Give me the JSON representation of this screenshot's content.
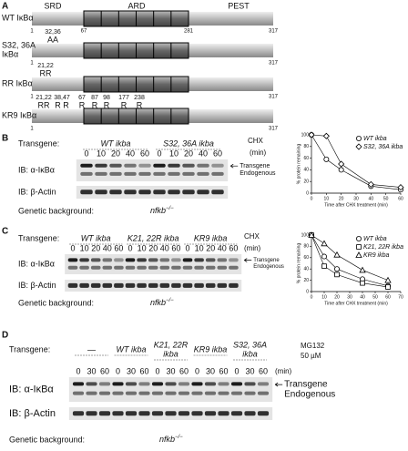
{
  "panel_a": {
    "label": "A",
    "domains": [
      "SRD",
      "ARD",
      "PEST"
    ],
    "rows": [
      {
        "name": [
          "WT IκBα"
        ],
        "positions": [
          "1",
          "67",
          "281",
          "317"
        ],
        "sites": [],
        "residues": []
      },
      {
        "name": [
          "S32, 36A",
          "IκBα"
        ],
        "positions": [
          "1",
          "317"
        ],
        "sites": [
          "32,36"
        ],
        "residues": [
          "AA"
        ]
      },
      {
        "name": [
          "RR IκBα"
        ],
        "positions": [
          "1",
          "317"
        ],
        "sites": [
          "21,22"
        ],
        "residues": [
          "RR"
        ]
      },
      {
        "name": [
          "KR9 IκBα"
        ],
        "positions": [
          "1",
          "317"
        ],
        "sites": [
          "21,22",
          "38,47",
          "67",
          "87",
          "98",
          "177",
          "238"
        ],
        "residues": [
          "RR",
          "R R",
          "R",
          "R",
          "R",
          "R",
          "R"
        ]
      }
    ]
  },
  "panel_b": {
    "label": "B",
    "transgene_label": "Transgene:",
    "groups": [
      [
        "WT ikba"
      ],
      [
        "S32, 36A ikba"
      ]
    ],
    "treatment": [
      "CHX"
    ],
    "unit": "(min)",
    "timepoints": [
      "0",
      "10",
      "20",
      "40",
      "60"
    ],
    "blots": [
      "IB: α-IκBα",
      "IB: β-Actin"
    ],
    "bands": [
      "Transgene",
      "Endogenous"
    ],
    "background_label": "Genetic background:",
    "background": {
      "gene": "nfkb",
      "genotype": "−/−"
    },
    "plot": {
      "y_label": "% protein remaining",
      "x_label": "Time after CHX treatment (min)",
      "xlim": [
        0,
        60
      ],
      "xticks": [
        0,
        10,
        20,
        30,
        40,
        50,
        60
      ],
      "ylim": [
        0,
        100
      ],
      "yticks": [
        0,
        20,
        40,
        60,
        80,
        100
      ],
      "series": [
        {
          "name": "WT ikba",
          "marker": "circle",
          "x": [
            0,
            10,
            20,
            40,
            60
          ],
          "values": [
            100,
            58,
            40,
            12,
            6
          ]
        },
        {
          "name": "S32, 36A ikba",
          "marker": "diamond",
          "x": [
            0,
            10,
            20,
            40,
            60
          ],
          "values": [
            100,
            98,
            50,
            15,
            10
          ]
        }
      ]
    }
  },
  "panel_c": {
    "label": "C",
    "transgene_label": "Transgene:",
    "groups": [
      [
        "WT ikba"
      ],
      [
        "K21, 22R ikba"
      ],
      [
        "KR9 ikba"
      ]
    ],
    "treatment": [
      "CHX"
    ],
    "unit": "(min)",
    "timepoints": [
      "0",
      "10",
      "20",
      "40",
      "60"
    ],
    "blots": [
      "IB: α-IκBα",
      "IB: β-Actin"
    ],
    "bands": [
      "Transgene",
      "Endogenous"
    ],
    "background_label": "Genetic background:",
    "background": {
      "gene": "nfkb",
      "genotype": "−/−"
    },
    "plot": {
      "y_label": "% protein remaining",
      "x_label": "Time after CHX treatment (min)",
      "xlim": [
        0,
        70
      ],
      "xticks": [
        0,
        10,
        20,
        30,
        40,
        50,
        60,
        70
      ],
      "ylim": [
        0,
        100
      ],
      "yticks": [
        0,
        20,
        40,
        60,
        80,
        100
      ],
      "series": [
        {
          "name": "WT ikba",
          "marker": "circle",
          "x": [
            0,
            10,
            20,
            40,
            60
          ],
          "values": [
            100,
            62,
            40,
            22,
            10
          ]
        },
        {
          "name": "K21, 22R ikba",
          "marker": "square",
          "x": [
            0,
            10,
            20,
            40,
            60
          ],
          "values": [
            100,
            45,
            30,
            15,
            8
          ]
        },
        {
          "name": "KR9 ikba",
          "marker": "triangle",
          "x": [
            0,
            10,
            20,
            40,
            60
          ],
          "values": [
            100,
            85,
            65,
            38,
            20
          ]
        }
      ]
    }
  },
  "panel_d": {
    "label": "D",
    "transgene_label": "Transgene:",
    "groups": [
      [
        "—"
      ],
      [
        "WT ikba"
      ],
      [
        "K21, 22R",
        "ikba"
      ],
      [
        "KR9 ikba"
      ],
      [
        "S32, 36A",
        "ikba"
      ]
    ],
    "treatment": [
      "MG132",
      "50 µM"
    ],
    "unit": "(min)",
    "timepoints": [
      "0",
      "30",
      "60"
    ],
    "blots": [
      "IB: α-IκBα",
      "IB: β-Actin"
    ],
    "bands": [
      "Transgene",
      "Endogenous"
    ],
    "background_label": "Genetic background:",
    "background": {
      "gene": "nfkb",
      "genotype": "−/−"
    }
  }
}
